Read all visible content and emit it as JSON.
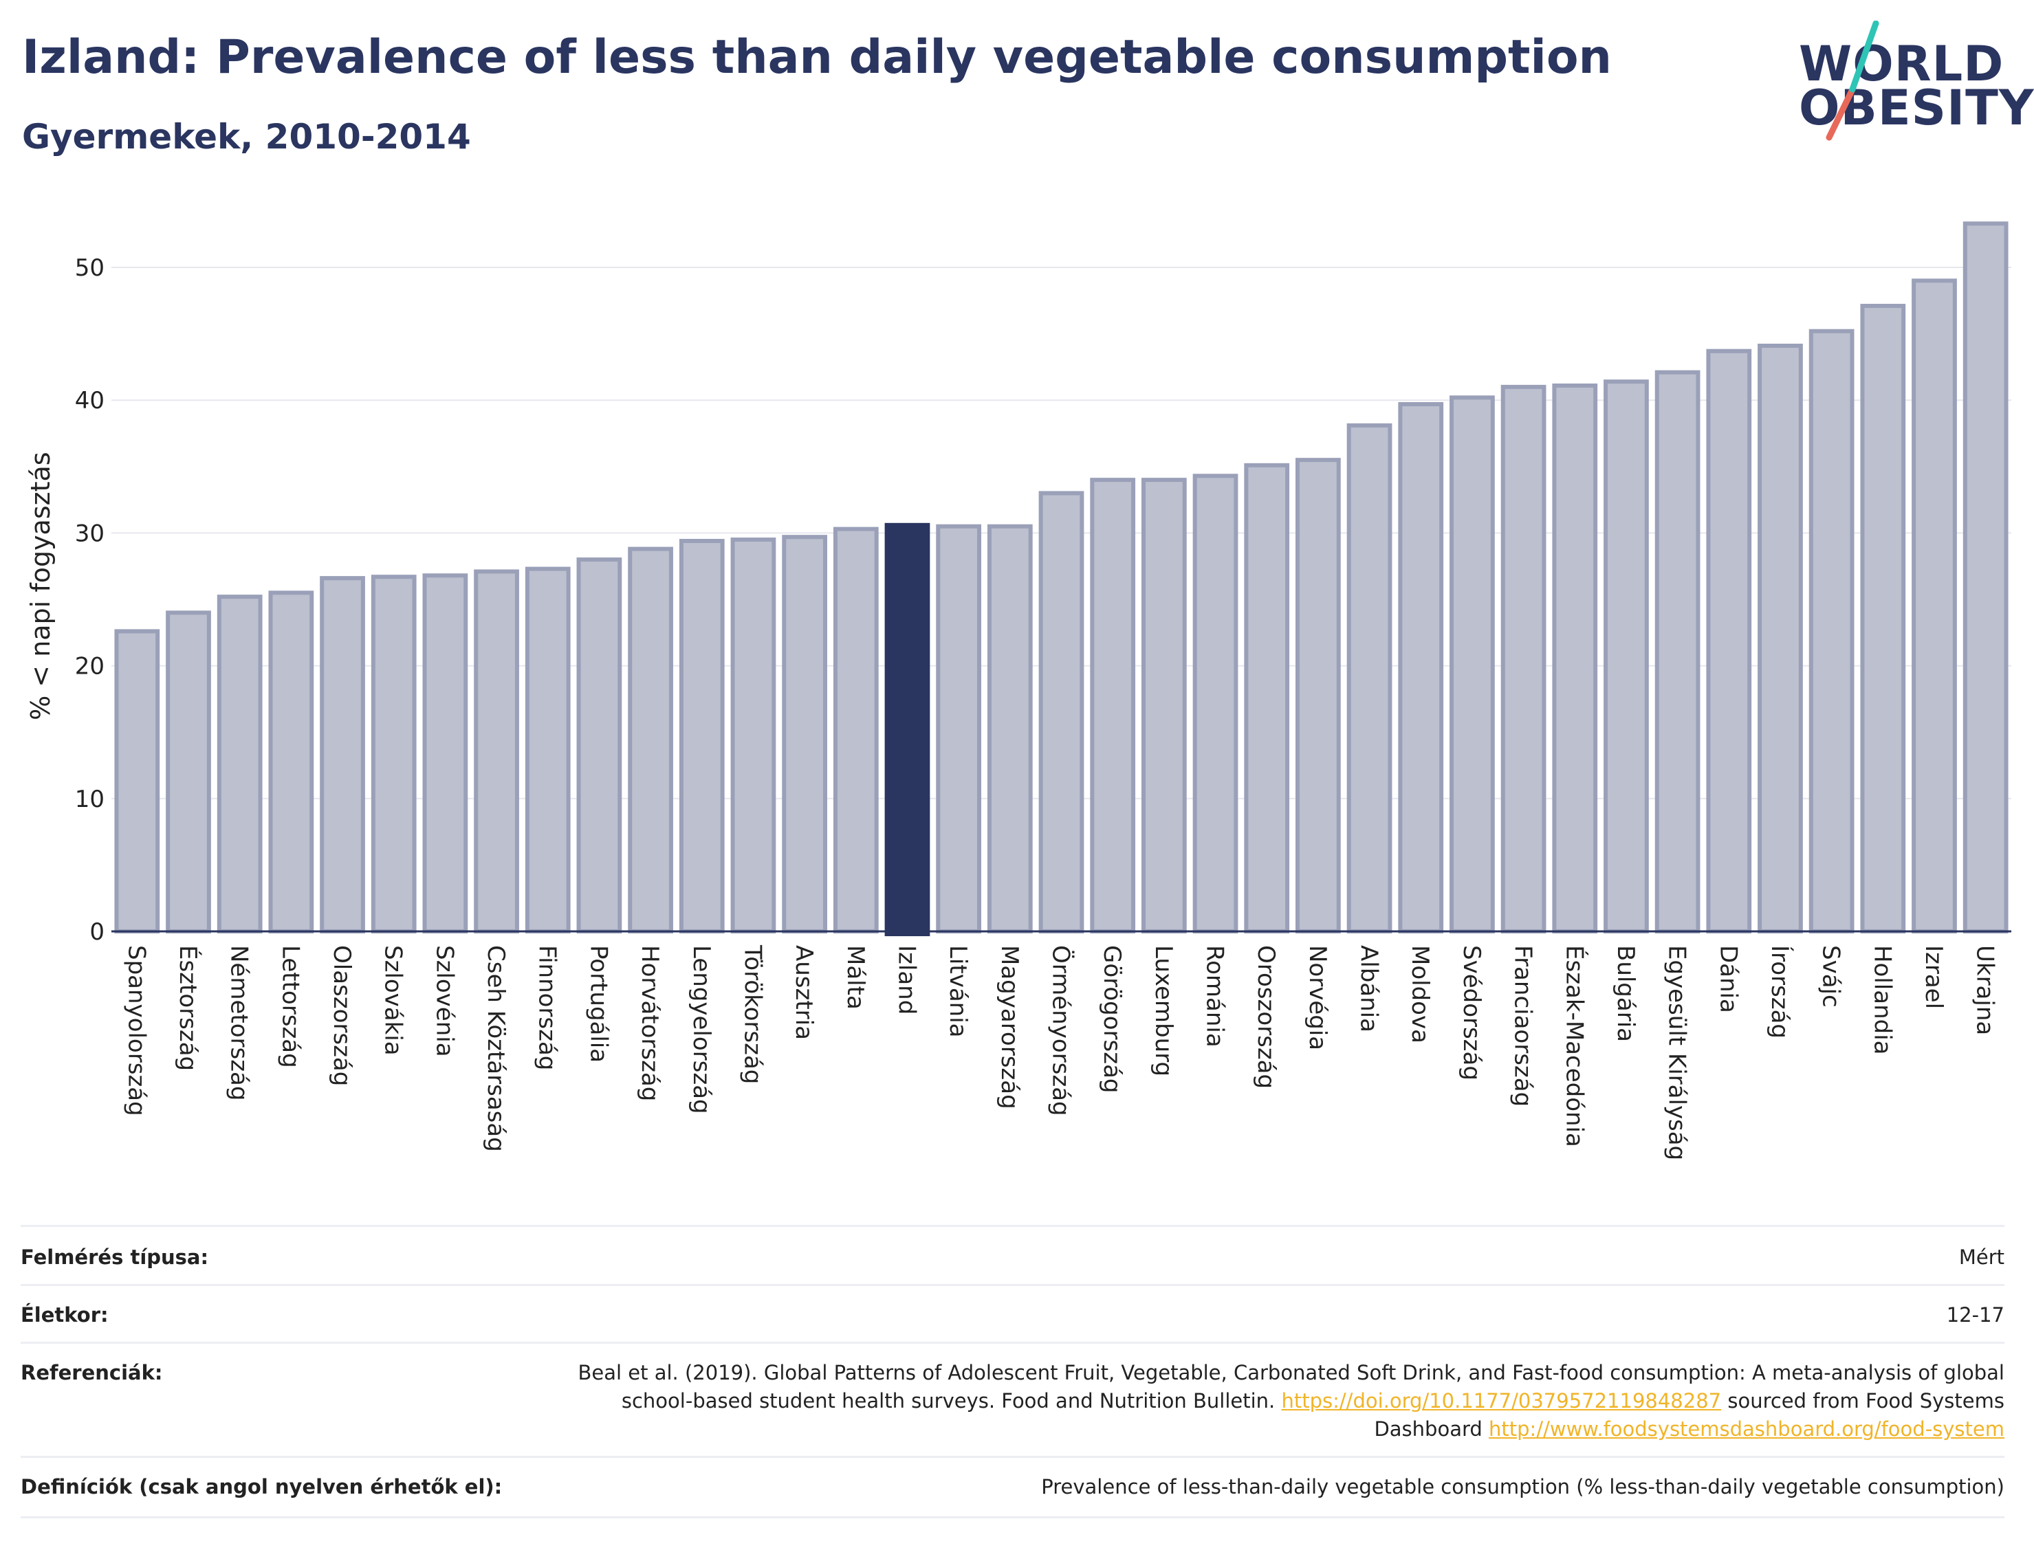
{
  "header": {
    "title": "Izland: Prevalence of less than daily vegetable consumption",
    "subtitle": "Gyermekek, 2010-2014",
    "logo_line1": "WORLD",
    "logo_line2": "OBESITY"
  },
  "colors": {
    "bar": "#bcc0cf",
    "bar_border": "#9aa0b8",
    "highlight": "#2a3560",
    "title": "#2a3560",
    "logo_slash_top": "#2ec4b6",
    "logo_slash_bottom": "#e8695a",
    "link": "#f0b429"
  },
  "chart_data": {
    "type": "bar",
    "title": "Izland: Prevalence of less than daily vegetable consumption",
    "subtitle": "Gyermekek, 2010-2014",
    "ylabel": "% < napi fogyasztás",
    "xlabel": "",
    "ylim": [
      0,
      55
    ],
    "yticks": [
      0,
      10,
      20,
      30,
      40,
      50
    ],
    "grid": true,
    "highlight": "Izland",
    "categories": [
      "Spanyolország",
      "Észtország",
      "Németország",
      "Lettország",
      "Olaszország",
      "Szlovákia",
      "Szlovénia",
      "Cseh Köztársaság",
      "Finnország",
      "Portugália",
      "Horvátország",
      "Lengyelország",
      "Törökország",
      "Ausztria",
      "Málta",
      "Izland",
      "Litvánia",
      "Magyarország",
      "Örményország",
      "Görögország",
      "Luxemburg",
      "Románia",
      "Oroszország",
      "Norvégia",
      "Albánia",
      "Moldova",
      "Svédország",
      "Franciaország",
      "Észak-Macedónia",
      "Bulgária",
      "Egyesült Királyság",
      "Dánia",
      "Írország",
      "Svájc",
      "Hollandia",
      "Izrael",
      "Ukrajna"
    ],
    "values": [
      22.6,
      24.0,
      25.2,
      25.5,
      26.6,
      26.7,
      26.8,
      27.1,
      27.3,
      28.0,
      28.8,
      29.4,
      29.5,
      29.7,
      30.3,
      30.6,
      30.5,
      30.5,
      33.0,
      34.0,
      34.0,
      34.3,
      35.1,
      35.5,
      38.1,
      39.7,
      40.2,
      41.0,
      41.1,
      41.4,
      42.1,
      43.7,
      44.1,
      45.2,
      47.1,
      49.0,
      53.3
    ]
  },
  "info": {
    "survey_type_label": "Felmérés típusa:",
    "survey_type_value": "Mért",
    "age_label": "Életkor:",
    "age_value": "12-17",
    "references_label": "Referenciák:",
    "references_text1": "Beal et al. (2019). Global Patterns of Adolescent Fruit, Vegetable, Carbonated Soft Drink, and Fast-food consumption: A meta-analysis of global school-based student health surveys. Food and Nutrition Bulletin.",
    "references_link1": "https://doi.org/10.1177/0379572119848287",
    "references_text2": "sourced from Food Systems Dashboard",
    "references_link2": "http://www.foodsystemsdashboard.org/food-system",
    "definitions_label": "Definíciók (csak angol nyelven érhetők el):",
    "definitions_value": "Prevalence of less-than-daily vegetable consumption (% less-than-daily vegetable consumption)"
  }
}
